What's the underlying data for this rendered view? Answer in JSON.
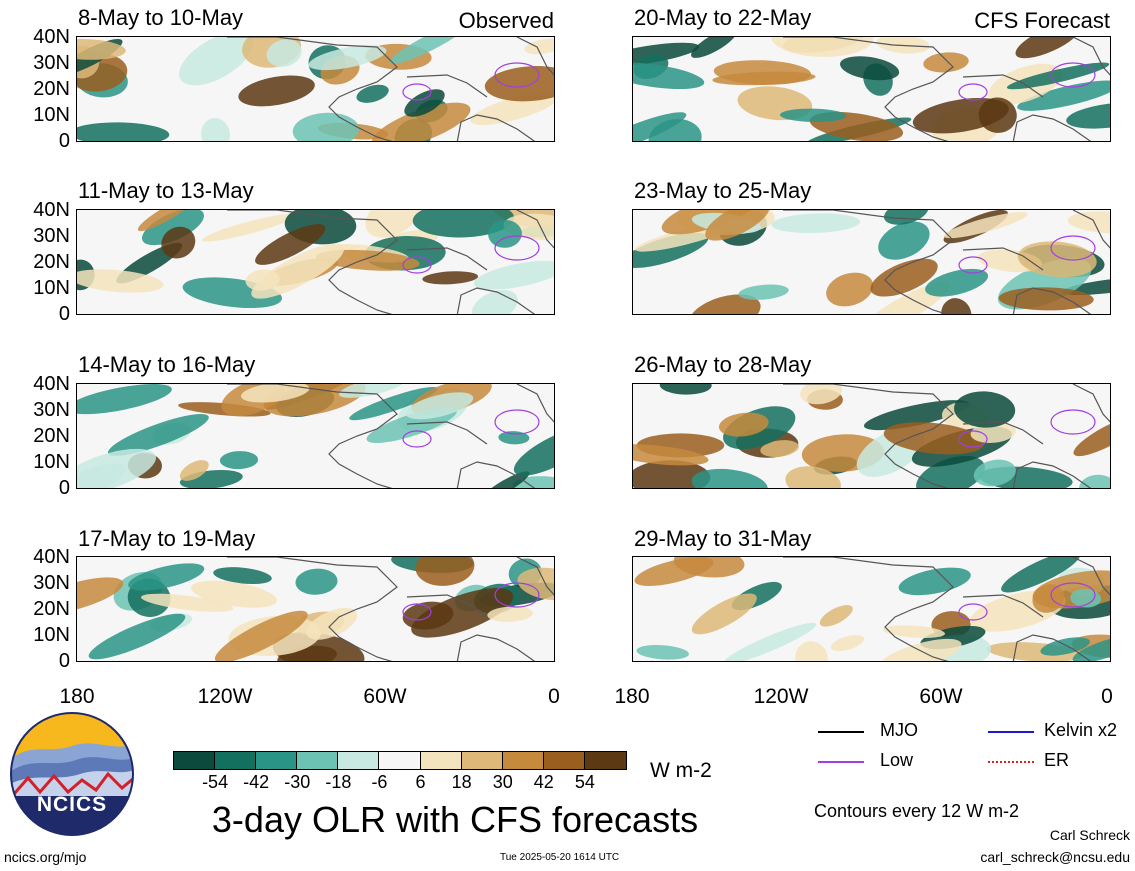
{
  "panels": {
    "left": [
      {
        "title": "8-May to 10-May",
        "tag": "Observed"
      },
      {
        "title": "11-May to 13-May"
      },
      {
        "title": "14-May to 16-May"
      },
      {
        "title": "17-May to 19-May"
      }
    ],
    "right": [
      {
        "title": "20-May to 22-May",
        "tag": "CFS Forecast"
      },
      {
        "title": "23-May to 25-May"
      },
      {
        "title": "26-May to 28-May"
      },
      {
        "title": "29-May to 31-May"
      }
    ]
  },
  "lat_labels": [
    "40N",
    "30N",
    "20N",
    "10N",
    "0"
  ],
  "lon_labels": [
    "180",
    "120W",
    "60W",
    "0"
  ],
  "colorbar": {
    "colors": [
      "#0b4a3c",
      "#14705e",
      "#2a9486",
      "#6cc3b4",
      "#c7e9e1",
      "#f6f6f6",
      "#f4e4bd",
      "#ddb878",
      "#c68a3d",
      "#9a5e1e",
      "#5c3813"
    ],
    "ticks": [
      "-54",
      "-42",
      "-30",
      "-18",
      "-6",
      "6",
      "18",
      "30",
      "42",
      "54"
    ],
    "units": "W m-2"
  },
  "legend": {
    "items": [
      {
        "label": "MJO",
        "color": "#000000"
      },
      {
        "label": "Kelvin x2",
        "color": "#1a1ad6"
      },
      {
        "label": "Low",
        "color": "#a23ee0"
      },
      {
        "label": "ER",
        "color": "#e02020"
      }
    ],
    "contours_note": "Contours every 12 W m-2"
  },
  "logo": {
    "text": "NCICS"
  },
  "main_title": "3-day OLR with CFS forecasts",
  "footer": {
    "url": "ncics.org/mjo",
    "timestamp": "Tue 2025-05-20 1614 UTC",
    "author": "Carl Schreck",
    "email": "carl_schreck@ncsu.edu"
  }
}
